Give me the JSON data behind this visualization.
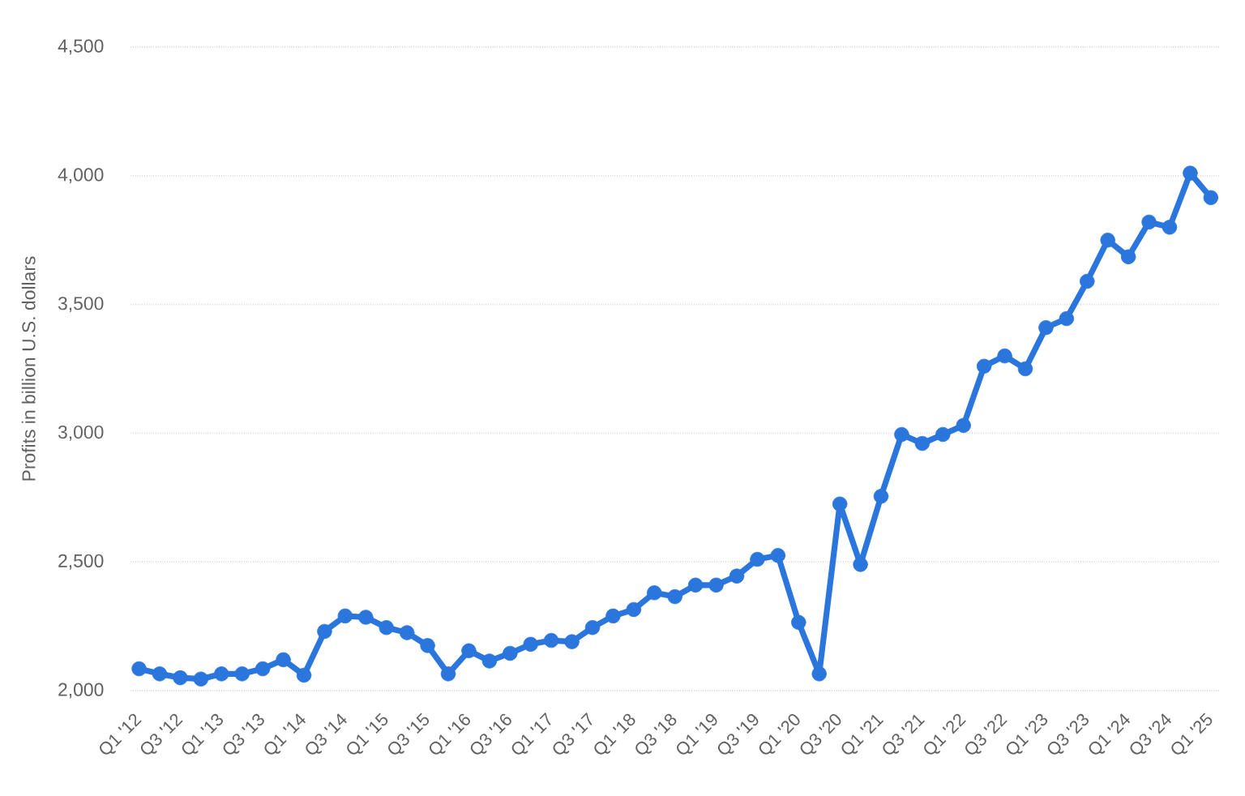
{
  "chart_data": {
    "type": "line",
    "ylabel": "Profits in billion U.S. dollars",
    "categories": [
      "Q1 '12",
      null,
      "Q3 '12",
      null,
      "Q1 '13",
      null,
      "Q3 '13",
      null,
      "Q1 '14",
      null,
      "Q3 '14",
      null,
      "Q1 '15",
      null,
      "Q3 '15",
      null,
      "Q1 '16",
      null,
      "Q3 '16",
      null,
      "Q1 '17",
      null,
      "Q3 '17",
      null,
      "Q1 '18",
      null,
      "Q3 '18",
      null,
      "Q1 '19",
      null,
      "Q3 '19",
      null,
      "Q1 '20",
      null,
      "Q3 '20",
      null,
      "Q1 '21",
      null,
      "Q3 '21",
      null,
      "Q1 '22",
      null,
      "Q3 '22",
      null,
      "Q1 '23",
      null,
      "Q3 '23",
      null,
      "Q1 '24",
      null,
      "Q3 '24",
      null,
      "Q1 '25"
    ],
    "series": [
      {
        "color": "#2a76dd",
        "values": [
          2085,
          2065,
          2050,
          2045,
          2065,
          2065,
          2085,
          2120,
          2060,
          2230,
          2290,
          2285,
          2245,
          2225,
          2175,
          2065,
          2155,
          2115,
          2145,
          2180,
          2195,
          2190,
          2245,
          2290,
          2315,
          2380,
          2365,
          2410,
          2410,
          2445,
          2510,
          2525,
          2265,
          2065,
          2725,
          2490,
          2755,
          2995,
          2960,
          2995,
          3030,
          3260,
          3300,
          3250,
          3410,
          3445,
          3590,
          3750,
          3685,
          3820,
          3800,
          4010,
          3915
        ]
      }
    ],
    "ylim": [
      2000,
      4500
    ],
    "yticks": [
      {
        "value": 2000,
        "label": "2,000"
      },
      {
        "value": 2500,
        "label": "2,500"
      },
      {
        "value": 3000,
        "label": "3,000"
      },
      {
        "value": 3500,
        "label": "3,500"
      },
      {
        "value": 4000,
        "label": "4,000"
      },
      {
        "value": 4500,
        "label": "4,500"
      }
    ],
    "grid": "y",
    "marker": "circle",
    "line_style": "solid"
  }
}
